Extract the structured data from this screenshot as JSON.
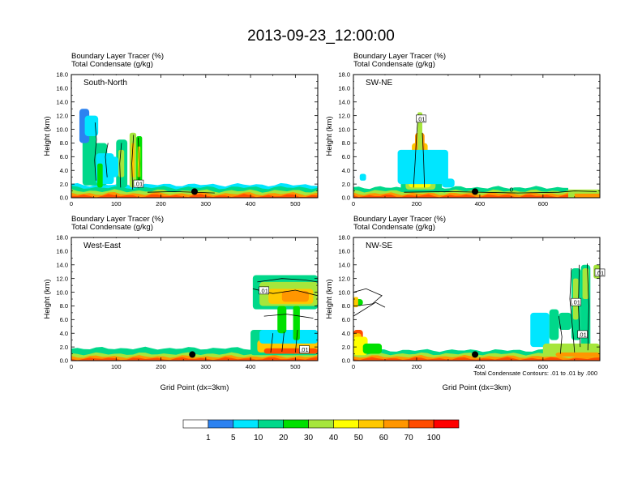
{
  "figure": {
    "title": "2013-09-23_12:00:00",
    "contour_note": "Total Condensate Contours: .01 to .01 by .000",
    "colorbar": {
      "colors": [
        "#ffffff",
        "#2c82f0",
        "#00e6ff",
        "#00d88a",
        "#00e000",
        "#a6e63c",
        "#ffff00",
        "#ffc800",
        "#ff9600",
        "#ff4c00",
        "#ff0000"
      ],
      "labels": [
        "1",
        "5",
        "10",
        "20",
        "30",
        "40",
        "50",
        "60",
        "70",
        "100"
      ]
    }
  },
  "chart_data": [
    {
      "type": "heatmap",
      "panel_label": "South-North",
      "subtitle_1": "Boundary Layer Tracer   (%)",
      "subtitle_2": "Total Condensate   (g/kg)",
      "ylabel": "Height (km)",
      "xlabel": "",
      "xlim": [
        0,
        550
      ],
      "ylim": [
        0,
        18
      ],
      "xticks": [
        "0",
        "100",
        "200",
        "300",
        "400",
        "500"
      ],
      "yticks": [
        "0.0",
        "2.0",
        "4.0",
        "6.0",
        "8.0",
        "10.0",
        "12.0",
        "14.0",
        "16.0",
        "18.0"
      ],
      "marker_x": 275,
      "contour_labels": [
        ".01"
      ]
    },
    {
      "type": "heatmap",
      "panel_label": "SW-NE",
      "subtitle_1": "Boundary Layer Tracer   (%)",
      "subtitle_2": "Total Condensate   (g/kg)",
      "ylabel": "Height (km)",
      "xlabel": "",
      "xlim": [
        0,
        780
      ],
      "ylim": [
        0,
        18
      ],
      "xticks": [
        "0",
        "200",
        "400",
        "600"
      ],
      "yticks": [
        "0.0",
        "2.0",
        "4.0",
        "6.0",
        "8.0",
        "10.0",
        "12.0",
        "14.0",
        "16.0",
        "18.0"
      ],
      "marker_x": 385,
      "contour_labels": [
        ".01",
        "0"
      ]
    },
    {
      "type": "heatmap",
      "panel_label": "West-East",
      "subtitle_1": "Boundary Layer Tracer   (%)",
      "subtitle_2": "Total Condensate   (g/kg)",
      "ylabel": "Height (km)",
      "xlabel": "Grid Point (dx=3km)",
      "xlim": [
        0,
        550
      ],
      "ylim": [
        0,
        18
      ],
      "xticks": [
        "0",
        "100",
        "200",
        "300",
        "400",
        "500"
      ],
      "yticks": [
        "0.0",
        "2.0",
        "4.0",
        "6.0",
        "8.0",
        "10.0",
        "12.0",
        "14.0",
        "16.0",
        "18.0"
      ],
      "marker_x": 270,
      "contour_labels": [
        ".01",
        ".01"
      ]
    },
    {
      "type": "heatmap",
      "panel_label": "NW-SE",
      "subtitle_1": "Boundary Layer Tracer   (%)",
      "subtitle_2": "Total Condensate   (g/kg)",
      "ylabel": "Height (km)",
      "xlabel": "Grid Point (dx=3km)",
      "xlim": [
        0,
        780
      ],
      "ylim": [
        0,
        18
      ],
      "xticks": [
        "0",
        "200",
        "400",
        "600"
      ],
      "yticks": [
        "0.0",
        "2.0",
        "4.0",
        "6.0",
        "8.0",
        "10.0",
        "12.0",
        "14.0",
        "16.0",
        "18.0"
      ],
      "marker_x": 385,
      "contour_labels": [
        ".01",
        ".01",
        ".01"
      ]
    }
  ]
}
